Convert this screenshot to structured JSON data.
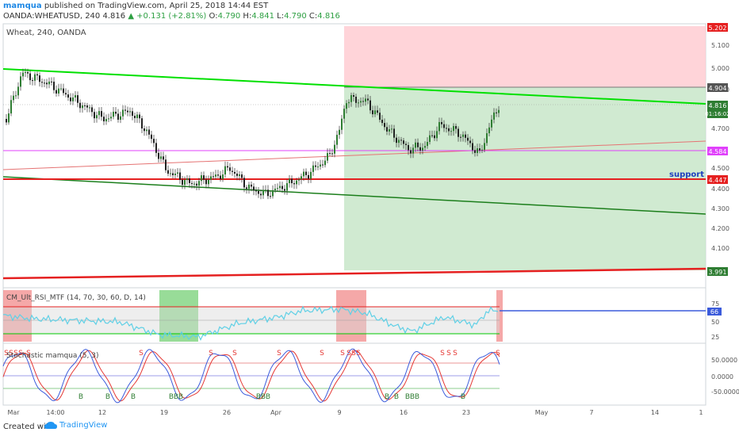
{
  "header": {
    "author": "mamqua",
    "published": "published on TradingView.com, April 25, 2018 14:44 EST",
    "symbol": "OANDA:WHEATUSD, 240",
    "last": "4.816",
    "change": "▲ +0.131 (+2.81%)",
    "o_label": "O:",
    "o": "4.790",
    "h_label": "H:",
    "h": "4.841",
    "l_label": "L:",
    "l": "4.790",
    "c_label": "C:",
    "c": "4.816"
  },
  "main_pane": {
    "title": "Wheat, 240, OANDA",
    "support_label": "support",
    "price_axis": [
      "5.100",
      "5.000",
      "4.900",
      "4.700",
      "4.500",
      "4.400",
      "4.300",
      "4.200",
      "4.100"
    ],
    "price_tags": {
      "stop": "5.202",
      "upper": "4.904",
      "last": "4.816",
      "countdown": "01:16:02",
      "magenta": "4.584",
      "support": "4.447",
      "target": "3.991"
    }
  },
  "rsi_pane": {
    "title": "CM_Ult_RSI_MTF (14, 70, 30, 60, D, 14)",
    "axis": [
      "75",
      "50",
      "25"
    ],
    "value_tag": "66"
  },
  "stoch_pane": {
    "title": "Stochastic mamqua (5, 3)",
    "axis": [
      "50.0000",
      "0.0000",
      "-50.0000"
    ],
    "sell_label": "S",
    "buy_label": "B"
  },
  "time_axis": [
    "Mar",
    "14:00",
    "12",
    "19",
    "26",
    "Apr",
    "9",
    "16",
    "23",
    "May",
    "7",
    "14",
    "1"
  ],
  "footer": {
    "created": "Created with",
    "brand": "TradingView"
  },
  "colors": {
    "green_band": "#00e000",
    "dark_green": "#1b7e1b",
    "red": "#e52020",
    "magenta": "#e040fb",
    "profit_zone": "#c8e6c9",
    "loss_zone": "#ffcdd2",
    "rsi_line": "#5fd0e6",
    "stoch_k": "#3b5bdb",
    "stoch_d": "#e53935"
  }
}
